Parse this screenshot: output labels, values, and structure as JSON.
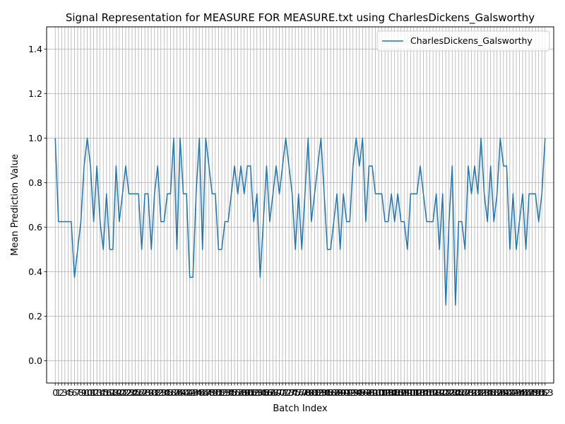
{
  "chart_data": {
    "type": "line",
    "title": "Signal Representation for MEASURE FOR MEASURE.txt using CharlesDickens_Galsworthy",
    "xlabel": "Batch Index",
    "ylabel": "Mean Prediction Value",
    "ylim": [
      -0.1,
      1.5
    ],
    "yticks": [
      "0.0",
      "0.2",
      "0.4",
      "0.6",
      "0.8",
      "1.0",
      "1.2",
      "1.4"
    ],
    "xlim": [
      -2.7,
      155.7
    ],
    "grid": true,
    "legend_position": "upper right",
    "x": [
      0,
      1,
      2,
      3,
      4,
      5,
      6,
      7,
      8,
      9,
      10,
      11,
      12,
      13,
      14,
      15,
      16,
      17,
      18,
      19,
      20,
      21,
      22,
      23,
      24,
      25,
      26,
      27,
      28,
      29,
      30,
      31,
      32,
      33,
      34,
      35,
      36,
      37,
      38,
      39,
      40,
      41,
      42,
      43,
      44,
      45,
      46,
      47,
      48,
      49,
      50,
      51,
      52,
      53,
      54,
      55,
      56,
      57,
      58,
      59,
      60,
      61,
      62,
      63,
      64,
      65,
      66,
      67,
      68,
      69,
      70,
      71,
      72,
      73,
      74,
      75,
      76,
      77,
      78,
      79,
      80,
      81,
      82,
      83,
      84,
      85,
      86,
      87,
      88,
      89,
      90,
      91,
      92,
      93,
      94,
      95,
      96,
      97,
      98,
      99,
      100,
      101,
      102,
      103,
      104,
      105,
      106,
      107,
      108,
      109,
      110,
      111,
      112,
      113,
      114,
      115,
      116,
      117,
      118,
      119,
      120,
      121,
      122,
      123,
      124,
      125,
      126,
      127,
      128,
      129,
      130,
      131,
      132,
      133,
      134,
      135,
      136,
      137,
      138,
      139,
      140,
      141,
      142,
      143,
      144,
      145,
      146,
      147,
      148,
      149,
      150,
      151,
      152,
      153
    ],
    "series": [
      {
        "name": "CharlesDickens_Galsworthy",
        "color": "#1f77b4",
        "values": [
          1.0,
          0.625,
          0.625,
          0.625,
          0.625,
          0.625,
          0.375,
          0.5,
          0.625,
          0.875,
          1.0,
          0.875,
          0.625,
          0.875,
          0.625,
          0.5,
          0.75,
          0.5,
          0.5,
          0.875,
          0.625,
          0.75,
          0.875,
          0.75,
          0.75,
          0.75,
          0.75,
          0.5,
          0.75,
          0.75,
          0.5,
          0.75,
          0.875,
          0.625,
          0.625,
          0.75,
          0.75,
          1.0,
          0.5,
          1.0,
          0.75,
          0.75,
          0.375,
          0.375,
          0.75,
          1.0,
          0.5,
          1.0,
          0.875,
          0.75,
          0.75,
          0.5,
          0.5,
          0.625,
          0.625,
          0.75,
          0.875,
          0.75,
          0.875,
          0.75,
          0.875,
          0.875,
          0.625,
          0.75,
          0.375,
          0.625,
          0.875,
          0.625,
          0.75,
          0.875,
          0.75,
          0.875,
          1.0,
          0.875,
          0.75,
          0.5,
          0.75,
          0.5,
          0.75,
          1.0,
          0.625,
          0.75,
          0.875,
          1.0,
          0.75,
          0.5,
          0.5,
          0.625,
          0.75,
          0.5,
          0.75,
          0.625,
          0.625,
          0.875,
          1.0,
          0.875,
          1.0,
          0.625,
          0.875,
          0.875,
          0.75,
          0.75,
          0.75,
          0.625,
          0.625,
          0.75,
          0.625,
          0.75,
          0.625,
          0.625,
          0.5,
          0.75,
          0.75,
          0.75,
          0.875,
          0.75,
          0.625,
          0.625,
          0.625,
          0.75,
          0.5,
          0.75,
          0.25,
          0.625,
          0.875,
          0.25,
          0.625,
          0.625,
          0.5,
          0.875,
          0.75,
          0.875,
          0.75,
          1.0,
          0.75,
          0.625,
          0.875,
          0.625,
          0.75,
          1.0,
          0.875,
          0.875,
          0.5,
          0.75,
          0.5,
          0.625,
          0.75,
          0.5,
          0.75,
          0.75,
          0.75,
          0.625,
          0.75,
          1.0
        ]
      }
    ]
  }
}
